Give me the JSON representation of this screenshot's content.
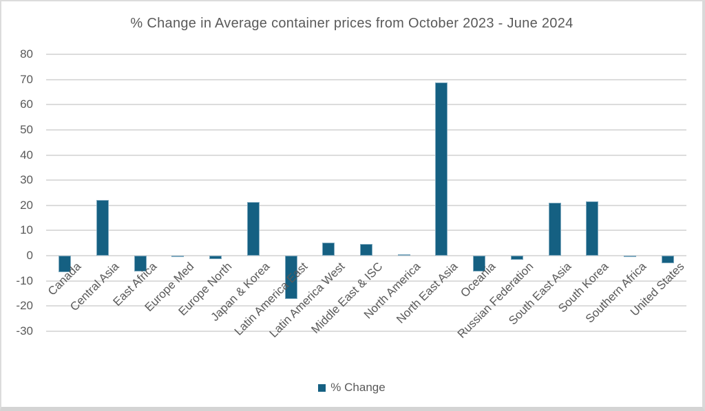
{
  "chart_data": {
    "type": "bar",
    "title": "% Change in Average container prices from October 2023 - June 2024",
    "categories": [
      "Canada",
      "Central Asia",
      "East Africa",
      "Europe Med",
      "Europe North",
      "Japan & Korea",
      "Latin America East",
      "Latin America West",
      "Middle East & ISC",
      "North America",
      "North East Asia",
      "Oceania",
      "Russian Federation",
      "South East Asia",
      "South Korea",
      "Southern Africa",
      "United States"
    ],
    "values": [
      -6.4,
      22.2,
      -6.3,
      -0.5,
      -1.3,
      21.3,
      -17.3,
      5.1,
      4.8,
      0.6,
      68.7,
      -6.3,
      -1.6,
      21.1,
      21.6,
      -0.4,
      -3.0
    ],
    "series_name": "% Change",
    "xlabel": "",
    "ylabel": "",
    "ylim": [
      -30,
      80
    ],
    "ytick_step": 10,
    "grid": true,
    "legend": {
      "label": "% Change",
      "position": "bottom"
    },
    "colors": {
      "bar_fill": "#156082",
      "bar_edge": "#7ea9bf",
      "text": "#595959",
      "gridline": "#dcdcdc"
    }
  }
}
